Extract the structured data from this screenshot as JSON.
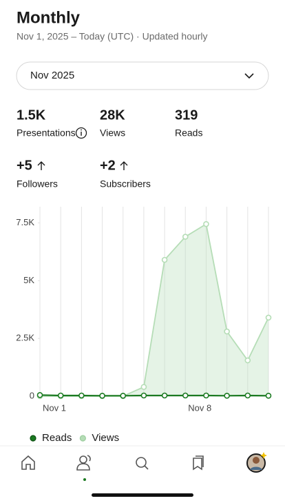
{
  "header": {
    "title": "Monthly",
    "subtitle": "Nov 1, 2025 – Today (UTC) · Updated hourly"
  },
  "dropdown": {
    "label": "Nov 2025"
  },
  "stats": [
    {
      "value": "1.5K",
      "label": "Presentations"
    },
    {
      "value": "28K",
      "label": "Views"
    },
    {
      "value": "319",
      "label": "Reads"
    },
    {
      "value": "+5",
      "label": "Followers"
    },
    {
      "value": "+2",
      "label": "Subscribers"
    }
  ],
  "chart_data": {
    "type": "line",
    "categories": [
      "Nov 1",
      null,
      null,
      null,
      null,
      null,
      null,
      "Nov 8",
      null,
      null,
      null,
      null
    ],
    "series": [
      {
        "name": "Reads",
        "color": "#1b7a21",
        "values": [
          50,
          30,
          30,
          20,
          20,
          30,
          30,
          30,
          30,
          20,
          30,
          20
        ],
        "area": false
      },
      {
        "name": "Views",
        "color": "#b5ddb6",
        "values": [
          0,
          0,
          0,
          0,
          0,
          400,
          5900,
          6900,
          7450,
          2800,
          1550,
          3400
        ],
        "area": true
      }
    ],
    "ylim": [
      0,
      8200
    ],
    "yticks": [
      0,
      {
        "value": 2500,
        "label": "2.5K"
      },
      {
        "value": 5000,
        "label": "5K"
      },
      {
        "value": 7500,
        "label": "7.5K"
      }
    ],
    "grid": true
  }
}
